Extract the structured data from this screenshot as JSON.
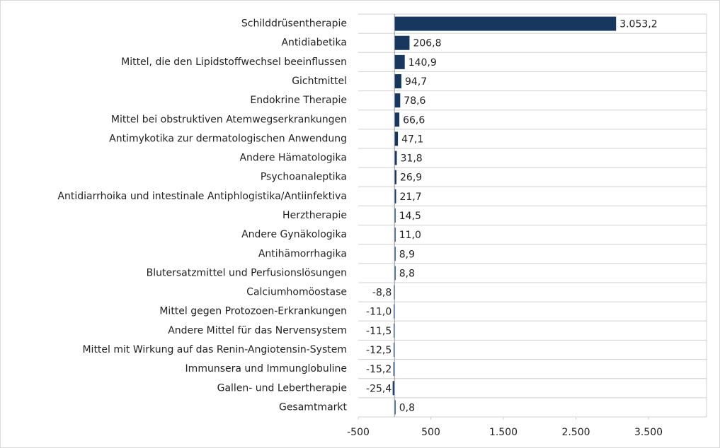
{
  "chart_data": {
    "type": "bar",
    "orientation": "horizontal",
    "color": "#17375e",
    "categories": [
      "Schilddrüsentherapie",
      "Antidiabetika",
      "Mittel, die den Lipidstoffwechsel beeinflussen",
      "Gichtmittel",
      "Endokrine Therapie",
      "Mittel bei obstruktiven Atemwegserkrankungen",
      "Antimykotika zur dermatologischen Anwendung",
      "Andere Hämatologika",
      "Psychoanaleptika",
      "Antidiarrhoika und intestinale Antiphlogistika/Antiinfektiva",
      "Herztherapie",
      "Andere Gynäkologika",
      "Antihämorrhagika",
      "Blutersatzmittel und Perfusionslösungen",
      "Calciumhomöostase",
      "Mittel gegen Protozoen-Erkrankungen",
      "Andere Mittel für das Nervensystem",
      "Mittel mit Wirkung auf das Renin-Angiotensin-System",
      "Immunsera und Immunglobuline",
      "Gallen- und Lebertherapie",
      "Gesamtmarkt"
    ],
    "values": [
      3053.2,
      206.8,
      140.9,
      94.7,
      78.6,
      66.6,
      47.1,
      31.8,
      26.9,
      21.7,
      14.5,
      11.0,
      8.9,
      8.8,
      -8.8,
      -11.0,
      -11.5,
      -12.5,
      -15.2,
      -25.4,
      0.8
    ],
    "value_labels": [
      "3.053,2",
      "206,8",
      "140,9",
      "94,7",
      "78,6",
      "66,6",
      "47,1",
      "31,8",
      "26,9",
      "21,7",
      "14,5",
      "11,0",
      "8,9",
      "8,8",
      "-8,8",
      "-11,0",
      "-11,5",
      "-12,5",
      "-15,2",
      "-25,4",
      "0,8"
    ],
    "xlim": [
      -500,
      4300
    ],
    "xticks": [
      -500,
      500,
      {
        "value": 1500,
        "label": "1.500"
      },
      {
        "value": 2500,
        "label": "2.500"
      },
      {
        "value": 3500,
        "label": "3.500"
      }
    ]
  }
}
